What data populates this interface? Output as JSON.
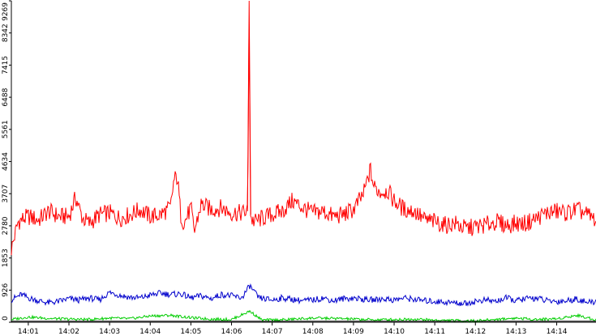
{
  "chart_data": {
    "type": "line",
    "title": "",
    "xlabel": "",
    "ylabel": "",
    "x_range": [
      "14:00:35",
      "14:14:58"
    ],
    "ylim": [
      0,
      9269
    ],
    "y_ticks": [
      0,
      926,
      1853,
      2780,
      3707,
      4634,
      5561,
      6488,
      7415,
      8342,
      9269
    ],
    "x_ticks": [
      "14:01",
      "14:02",
      "14:03",
      "14:04",
      "14:05",
      "14:06",
      "14:07",
      "14:08",
      "14:09",
      "14:10",
      "14:11",
      "14:12",
      "14:13",
      "14:14"
    ],
    "grid": false,
    "legend": "none",
    "series": [
      {
        "color": "#ff0000",
        "x": [
          "14:00:35",
          "14:00:45",
          "14:01:00",
          "14:01:15",
          "14:01:30",
          "14:01:45",
          "14:02:00",
          "14:02:10",
          "14:02:20",
          "14:02:30",
          "14:02:45",
          "14:03:00",
          "14:03:15",
          "14:03:30",
          "14:03:45",
          "14:04:00",
          "14:04:15",
          "14:04:30",
          "14:04:35",
          "14:04:40",
          "14:04:45",
          "14:04:50",
          "14:05:00",
          "14:05:05",
          "14:05:15",
          "14:05:30",
          "14:05:45",
          "14:06:00",
          "14:06:15",
          "14:06:24",
          "14:06:26",
          "14:06:28",
          "14:06:30",
          "14:06:35",
          "14:06:45",
          "14:07:00",
          "14:07:15",
          "14:07:30",
          "14:07:45",
          "14:08:00",
          "14:08:15",
          "14:08:30",
          "14:08:45",
          "14:09:00",
          "14:09:15",
          "14:09:25",
          "14:09:30",
          "14:09:40",
          "14:09:50",
          "14:10:00",
          "14:10:15",
          "14:10:30",
          "14:10:45",
          "14:11:00",
          "14:11:15",
          "14:11:30",
          "14:11:45",
          "14:12:00",
          "14:12:15",
          "14:12:30",
          "14:12:45",
          "14:13:00",
          "14:13:15",
          "14:13:30",
          "14:13:45",
          "14:14:00",
          "14:14:15",
          "14:14:30",
          "14:14:45",
          "14:14:58"
        ],
        "values": [
          2100,
          2900,
          3050,
          2950,
          3200,
          3050,
          3050,
          3600,
          3000,
          2850,
          3100,
          3150,
          3000,
          3100,
          3250,
          3050,
          3100,
          3300,
          4100,
          4200,
          3100,
          2850,
          3300,
          2600,
          3400,
          3250,
          3300,
          3150,
          3150,
          3200,
          9269,
          3100,
          2950,
          2900,
          3000,
          3100,
          3200,
          3500,
          3300,
          3150,
          3200,
          3050,
          3100,
          3250,
          3700,
          4400,
          3900,
          3750,
          3800,
          3500,
          3250,
          3200,
          2950,
          2900,
          2800,
          2850,
          2700,
          2750,
          2800,
          2900,
          2800,
          2850,
          2850,
          3000,
          3150,
          3200,
          3150,
          3250,
          3100,
          2950
        ]
      },
      {
        "color": "#0000cc",
        "x": [
          "14:00:35",
          "14:00:50",
          "14:01:00",
          "14:01:15",
          "14:01:30",
          "14:01:45",
          "14:02:00",
          "14:02:15",
          "14:02:30",
          "14:02:45",
          "14:03:00",
          "14:03:15",
          "14:03:30",
          "14:03:45",
          "14:04:00",
          "14:04:15",
          "14:04:30",
          "14:04:45",
          "14:05:00",
          "14:05:15",
          "14:05:30",
          "14:05:45",
          "14:06:00",
          "14:06:15",
          "14:06:27",
          "14:06:40",
          "14:07:00",
          "14:07:15",
          "14:07:30",
          "14:07:45",
          "14:08:00",
          "14:08:15",
          "14:08:30",
          "14:08:45",
          "14:09:00",
          "14:09:15",
          "14:09:30",
          "14:09:45",
          "14:10:00",
          "14:10:15",
          "14:10:30",
          "14:10:45",
          "14:11:00",
          "14:11:15",
          "14:11:30",
          "14:11:45",
          "14:12:00",
          "14:12:15",
          "14:12:30",
          "14:12:45",
          "14:13:00",
          "14:13:15",
          "14:13:30",
          "14:13:45",
          "14:14:00",
          "14:14:15",
          "14:14:30",
          "14:14:45",
          "14:14:58"
        ],
        "values": [
          650,
          800,
          700,
          620,
          560,
          600,
          680,
          640,
          700,
          640,
          860,
          780,
          720,
          700,
          780,
          840,
          800,
          820,
          700,
          760,
          680,
          800,
          760,
          700,
          1050,
          700,
          640,
          700,
          660,
          620,
          640,
          700,
          620,
          680,
          700,
          660,
          640,
          680,
          640,
          700,
          660,
          620,
          600,
          580,
          560,
          540,
          600,
          640,
          600,
          700,
          620,
          680,
          700,
          620,
          600,
          620,
          680,
          560,
          600
        ]
      },
      {
        "color": "#00cc00",
        "x": [
          "14:00:35",
          "14:01:00",
          "14:01:30",
          "14:02:00",
          "14:02:30",
          "14:03:00",
          "14:03:30",
          "14:04:00",
          "14:04:30",
          "14:05:00",
          "14:05:30",
          "14:06:00",
          "14:06:27",
          "14:06:45",
          "14:07:15",
          "14:08:00",
          "14:08:30",
          "14:09:00",
          "14:09:30",
          "14:10:00",
          "14:10:30",
          "14:11:00",
          "14:11:30",
          "14:12:00",
          "14:12:30",
          "14:13:00",
          "14:13:30",
          "14:14:00",
          "14:14:30",
          "14:14:58"
        ],
        "values": [
          80,
          150,
          110,
          90,
          80,
          120,
          100,
          180,
          200,
          130,
          90,
          80,
          320,
          60,
          70,
          120,
          110,
          90,
          70,
          80,
          90,
          60,
          50,
          40,
          80,
          120,
          80,
          100,
          200,
          70
        ]
      },
      {
        "color": "#000000",
        "x": [
          "14:00:35",
          "14:14:58"
        ],
        "values": [
          30,
          30
        ]
      }
    ]
  }
}
